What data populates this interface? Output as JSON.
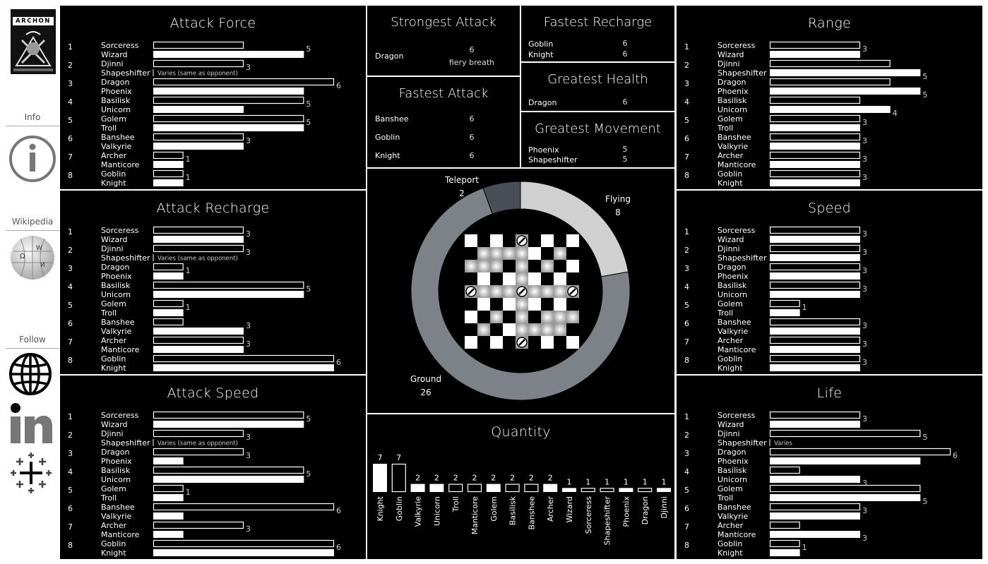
{
  "sidebar": {
    "logo_text": "ARCHON",
    "info_label": "Info",
    "wikipedia_label": "Wikipedia",
    "follow_label": "Follow"
  },
  "stats": {
    "strongest_attack": {
      "title": "Strongest Attack",
      "rows": [
        {
          "name": "Dragon",
          "value": "6",
          "note": "fiery breath"
        }
      ]
    },
    "fastest_recharge": {
      "title": "Fastest Recharge",
      "rows": [
        {
          "name": "Goblin",
          "value": "6"
        },
        {
          "name": "Knight",
          "value": "6"
        }
      ]
    },
    "fastest_attack": {
      "title": "Fastest Attack",
      "rows": [
        {
          "name": "Banshee",
          "value": "6"
        },
        {
          "name": "Goblin",
          "value": "6"
        },
        {
          "name": "Knight",
          "value": "6"
        }
      ]
    },
    "greatest_health": {
      "title": "Greatest Health",
      "rows": [
        {
          "name": "Dragon",
          "value": "6"
        }
      ]
    },
    "greatest_movement": {
      "title": "Greatest Movement",
      "rows": [
        {
          "name": "Phoenix",
          "value": "5"
        },
        {
          "name": "Shapeshifter",
          "value": "5"
        }
      ]
    }
  },
  "chart_data": [
    {
      "id": "attack_force",
      "type": "bar",
      "title": "Attack Force",
      "xlim": [
        0,
        6
      ],
      "rows": [
        {
          "rank": "1",
          "names": [
            "Sorceress",
            "Wizard"
          ],
          "values": [
            3,
            5
          ],
          "label": "5"
        },
        {
          "rank": "2",
          "names": [
            "Djinni",
            "Shapeshifter"
          ],
          "values": [
            3,
            null
          ],
          "label": "3",
          "note": "Varies (same as opponent)"
        },
        {
          "rank": "3",
          "names": [
            "Dragon",
            "Phoenix"
          ],
          "values": [
            6,
            5
          ],
          "label": "6"
        },
        {
          "rank": "4",
          "names": [
            "Basilisk",
            "Unicorn"
          ],
          "values": [
            5,
            3
          ],
          "label": "5"
        },
        {
          "rank": "5",
          "names": [
            "Golem",
            "Troll"
          ],
          "values": [
            5,
            5
          ],
          "label": "5"
        },
        {
          "rank": "6",
          "names": [
            "Banshee",
            "Valkyrie"
          ],
          "values": [
            3,
            3
          ],
          "label": "3"
        },
        {
          "rank": "7",
          "names": [
            "Archer",
            "Manticore"
          ],
          "values": [
            1,
            1
          ],
          "label": "1"
        },
        {
          "rank": "8",
          "names": [
            "Goblin",
            "Knight"
          ],
          "values": [
            1,
            1
          ],
          "label": "1"
        }
      ]
    },
    {
      "id": "attack_recharge",
      "type": "bar",
      "title": "Attack Recharge",
      "xlim": [
        0,
        6
      ],
      "rows": [
        {
          "rank": "1",
          "names": [
            "Sorceress",
            "Wizard"
          ],
          "values": [
            3,
            3
          ],
          "label": "3"
        },
        {
          "rank": "2",
          "names": [
            "Djinni",
            "Shapeshifter"
          ],
          "values": [
            3,
            null
          ],
          "label": "3",
          "note": "Varies (same as opponent)"
        },
        {
          "rank": "3",
          "names": [
            "Dragon",
            "Phoenix"
          ],
          "values": [
            1,
            1
          ],
          "label": "1"
        },
        {
          "rank": "4",
          "names": [
            "Basilisk",
            "Unicorn"
          ],
          "values": [
            5,
            5
          ],
          "label": "5"
        },
        {
          "rank": "5",
          "names": [
            "Golem",
            "Troll"
          ],
          "values": [
            1,
            1
          ],
          "label": "1"
        },
        {
          "rank": "6",
          "names": [
            "Banshee",
            "Valkyrie"
          ],
          "values": [
            1,
            3
          ],
          "label": "3"
        },
        {
          "rank": "7",
          "names": [
            "Archer",
            "Manticore"
          ],
          "values": [
            3,
            3
          ],
          "label": "3"
        },
        {
          "rank": "8",
          "names": [
            "Goblin",
            "Knight"
          ],
          "values": [
            6,
            6
          ],
          "label": "6"
        }
      ]
    },
    {
      "id": "attack_speed",
      "type": "bar",
      "title": "Attack Speed",
      "xlim": [
        0,
        6
      ],
      "rows": [
        {
          "rank": "1",
          "names": [
            "Sorceress",
            "Wizard"
          ],
          "values": [
            5,
            5
          ],
          "label": "5"
        },
        {
          "rank": "2",
          "names": [
            "Djinni",
            "Shapeshifter"
          ],
          "values": [
            3,
            null
          ],
          "label": "3",
          "note": "Varies (same as opponent)"
        },
        {
          "rank": "3",
          "names": [
            "Dragon",
            "Phoenix"
          ],
          "values": [
            3,
            1
          ],
          "label": "3"
        },
        {
          "rank": "4",
          "names": [
            "Basilisk",
            "Unicorn"
          ],
          "values": [
            5,
            5
          ],
          "label": "5"
        },
        {
          "rank": "5",
          "names": [
            "Golem",
            "Troll"
          ],
          "values": [
            1,
            1
          ],
          "label": "1"
        },
        {
          "rank": "6",
          "names": [
            "Banshee",
            "Valkyrie"
          ],
          "values": [
            6,
            1
          ],
          "label": "6"
        },
        {
          "rank": "7",
          "names": [
            "Archer",
            "Manticore"
          ],
          "values": [
            3,
            1
          ],
          "label": "3"
        },
        {
          "rank": "8",
          "names": [
            "Goblin",
            "Knight"
          ],
          "values": [
            6,
            6
          ],
          "label": "6"
        }
      ]
    },
    {
      "id": "range",
      "type": "bar",
      "title": "Range",
      "xlim": [
        0,
        6
      ],
      "rows": [
        {
          "rank": "1",
          "names": [
            "Sorceress",
            "Wizard"
          ],
          "values": [
            3,
            3
          ],
          "label": "3"
        },
        {
          "rank": "2",
          "names": [
            "Djinni",
            "Shapeshifter"
          ],
          "values": [
            4,
            5
          ],
          "label": "5",
          "label_row": 1
        },
        {
          "rank": "3",
          "names": [
            "Dragon",
            "Phoenix"
          ],
          "values": [
            4,
            5
          ],
          "label": "5",
          "label_row": 1
        },
        {
          "rank": "4",
          "names": [
            "Basilisk",
            "Unicorn"
          ],
          "values": [
            3,
            4
          ],
          "label": "4",
          "label_row": 1
        },
        {
          "rank": "5",
          "names": [
            "Golem",
            "Troll"
          ],
          "values": [
            3,
            3
          ],
          "label": "3"
        },
        {
          "rank": "6",
          "names": [
            "Banshee",
            "Valkyrie"
          ],
          "values": [
            3,
            3
          ],
          "label": "3"
        },
        {
          "rank": "7",
          "names": [
            "Archer",
            "Manticore"
          ],
          "values": [
            3,
            3
          ],
          "label": "3"
        },
        {
          "rank": "8",
          "names": [
            "Goblin",
            "Knight"
          ],
          "values": [
            3,
            3
          ],
          "label": "3"
        }
      ]
    },
    {
      "id": "speed",
      "type": "bar",
      "title": "Speed",
      "xlim": [
        0,
        6
      ],
      "rows": [
        {
          "rank": "1",
          "names": [
            "Sorceress",
            "Wizard"
          ],
          "values": [
            3,
            3
          ],
          "label": "3"
        },
        {
          "rank": "2",
          "names": [
            "Djinni",
            "Shapeshifter"
          ],
          "values": [
            3,
            3
          ],
          "label": "3"
        },
        {
          "rank": "3",
          "names": [
            "Dragon",
            "Phoenix"
          ],
          "values": [
            3,
            3
          ],
          "label": "3"
        },
        {
          "rank": "4",
          "names": [
            "Basilisk",
            "Unicorn"
          ],
          "values": [
            3,
            3
          ],
          "label": "3"
        },
        {
          "rank": "5",
          "names": [
            "Golem",
            "Troll"
          ],
          "values": [
            1,
            1
          ],
          "label": "1"
        },
        {
          "rank": "6",
          "names": [
            "Banshee",
            "Valkyrie"
          ],
          "values": [
            3,
            3
          ],
          "label": "3"
        },
        {
          "rank": "7",
          "names": [
            "Archer",
            "Manticore"
          ],
          "values": [
            3,
            3
          ],
          "label": "3"
        },
        {
          "rank": "8",
          "names": [
            "Goblin",
            "Knight"
          ],
          "values": [
            3,
            3
          ],
          "label": "3"
        }
      ]
    },
    {
      "id": "life",
      "type": "bar",
      "title": "Life",
      "xlim": [
        0,
        6
      ],
      "rows": [
        {
          "rank": "1",
          "names": [
            "Sorceress",
            "Wizard"
          ],
          "values": [
            3,
            3
          ],
          "label": "3"
        },
        {
          "rank": "2",
          "names": [
            "Djinni",
            "Shapeshifter"
          ],
          "values": [
            5,
            null
          ],
          "label": "5",
          "note": "Varies"
        },
        {
          "rank": "3",
          "names": [
            "Dragon",
            "Phoenix"
          ],
          "values": [
            6,
            5
          ],
          "label": "6"
        },
        {
          "rank": "4",
          "names": [
            "Basilisk",
            "Unicorn"
          ],
          "values": [
            1,
            3
          ],
          "label": "3",
          "label_row": 1
        },
        {
          "rank": "5",
          "names": [
            "Golem",
            "Troll"
          ],
          "values": [
            5,
            5
          ],
          "label": "5",
          "label_row": 1
        },
        {
          "rank": "6",
          "names": [
            "Banshee",
            "Valkyrie"
          ],
          "values": [
            3,
            3
          ],
          "label": "3"
        },
        {
          "rank": "7",
          "names": [
            "Archer",
            "Manticore"
          ],
          "values": [
            1,
            3
          ],
          "label": "3",
          "label_row": 1
        },
        {
          "rank": "8",
          "names": [
            "Goblin",
            "Knight"
          ],
          "values": [
            1,
            1
          ],
          "label": "1"
        }
      ]
    },
    {
      "id": "movement_type",
      "type": "pie",
      "title": "",
      "slices": [
        {
          "label": "Flying",
          "value": 8,
          "color": "#d0d0d0"
        },
        {
          "label": "Ground",
          "value": 26,
          "color": "#7d8288"
        },
        {
          "label": "Teleport",
          "value": 2,
          "color": "#4a4e56"
        }
      ]
    },
    {
      "id": "quantity",
      "type": "bar",
      "title": "Quantity",
      "ylim": [
        0,
        7
      ],
      "categories": [
        "Knight",
        "Goblin",
        "Valkyrie",
        "Unicorn",
        "Troll",
        "Manticore",
        "Golem",
        "Basilisk",
        "Banshee",
        "Archer",
        "Wizard",
        "Sorceress",
        "Shapeshifter",
        "Phoenix",
        "Dragon",
        "Djinni"
      ],
      "values": [
        7,
        7,
        2,
        2,
        2,
        2,
        2,
        2,
        2,
        2,
        1,
        1,
        1,
        1,
        1,
        1
      ]
    }
  ]
}
